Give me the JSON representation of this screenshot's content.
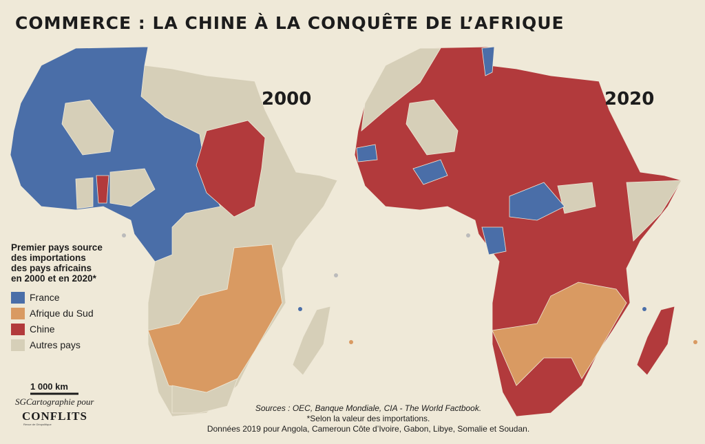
{
  "title": "COMMERCE : LA CHINE À LA CONQUÊTE DE L’AFRIQUE",
  "maps": [
    {
      "year": "2000"
    },
    {
      "year": "2020"
    }
  ],
  "legend": {
    "title_lines": [
      "Premier pays source",
      "des importations",
      "des pays africains",
      "en 2000 et en 2020*"
    ],
    "items": [
      {
        "label": "France",
        "color": "#4a6ea8"
      },
      {
        "label": "Afrique du Sud",
        "color": "#d99a62"
      },
      {
        "label": "Chine",
        "color": "#b23a3c"
      },
      {
        "label": "Autres pays",
        "color": "#d6cfb8"
      }
    ]
  },
  "scale": {
    "label": "1 000 km"
  },
  "credit": {
    "author": "SGCartographie pour",
    "publisher": "CONFLITS",
    "tagline": "Revue de Géopolitique"
  },
  "sources": [
    "Sources : OEC, Banque Mondiale, CIA - The World Factbook.",
    "*Selon la valeur des importations.",
    "Données 2019 pour Angola, Cameroun Côte d’Ivoire, Gabon, Libye, Somalie et Soudan."
  ]
}
